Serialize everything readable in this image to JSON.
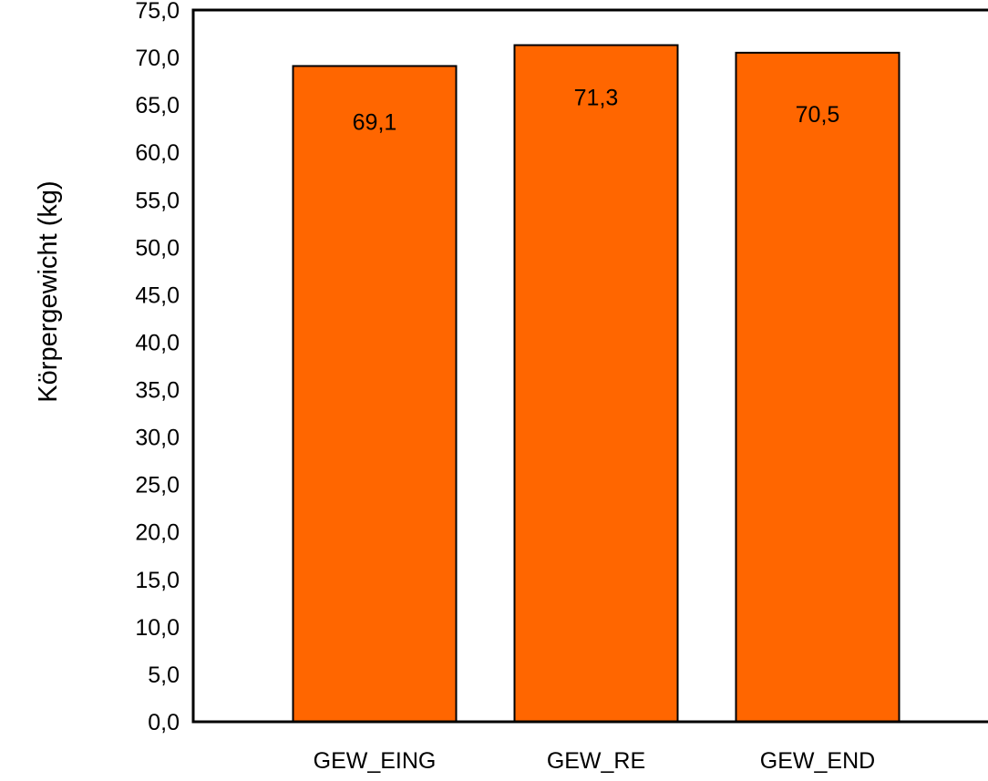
{
  "chart_data": {
    "type": "bar",
    "title": "",
    "xlabel": "",
    "ylabel": "Körpergewicht (kg)",
    "categories": [
      "GEW_EING",
      "GEW_RE",
      "GEW_END"
    ],
    "values": [
      69.1,
      71.3,
      70.5
    ],
    "value_labels": [
      "69,1",
      "71,3",
      "70,5"
    ],
    "ylim": [
      0,
      75
    ],
    "yticks": [
      "0,0",
      "5,0",
      "10,0",
      "15,0",
      "20,0",
      "25,0",
      "30,0",
      "35,0",
      "40,0",
      "45,0",
      "50,0",
      "55,0",
      "60,0",
      "65,0",
      "70,0",
      "75,0"
    ],
    "grid": false,
    "legend": "none",
    "colors": {
      "bar_fill": "#ff6600",
      "bar_stroke": "#000000",
      "axis": "#000000"
    }
  }
}
